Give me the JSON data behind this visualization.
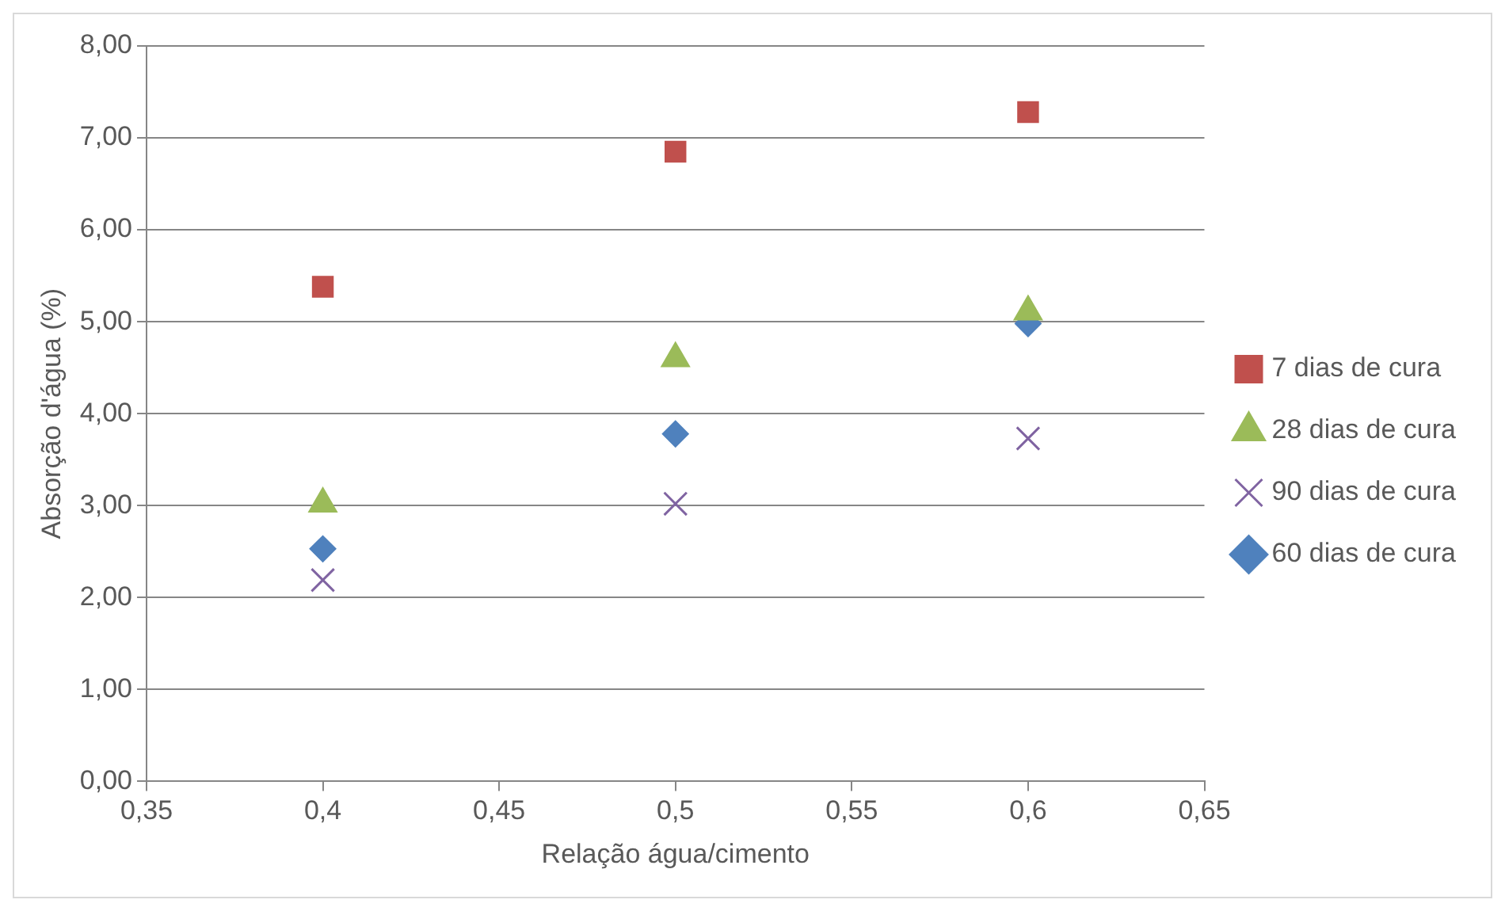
{
  "chart_data": {
    "type": "scatter",
    "xlabel": "Relação água/cimento",
    "ylabel": "Absorção d'água (%)",
    "xlim": [
      0.35,
      0.65
    ],
    "xticks": [
      {
        "value": 0.35,
        "label": "0,35"
      },
      {
        "value": 0.4,
        "label": "0,4"
      },
      {
        "value": 0.45,
        "label": "0,45"
      },
      {
        "value": 0.5,
        "label": "0,5"
      },
      {
        "value": 0.55,
        "label": "0,55"
      },
      {
        "value": 0.6,
        "label": "0,6"
      },
      {
        "value": 0.65,
        "label": "0,65"
      }
    ],
    "ylim": [
      0,
      8
    ],
    "yticks": [
      {
        "value": 0,
        "label": "0,00"
      },
      {
        "value": 1,
        "label": "1,00"
      },
      {
        "value": 2,
        "label": "2,00"
      },
      {
        "value": 3,
        "label": "3,00"
      },
      {
        "value": 4,
        "label": "4,00"
      },
      {
        "value": 5,
        "label": "5,00"
      },
      {
        "value": 6,
        "label": "6,00"
      },
      {
        "value": 7,
        "label": "7,00"
      },
      {
        "value": 8,
        "label": "8,00"
      }
    ],
    "grid": "y",
    "legend": "right",
    "x": [
      0.4,
      0.5,
      0.6
    ],
    "series": [
      {
        "name": "7 dias de cura",
        "color": "#c0504d",
        "marker": "square",
        "values": [
          5.38,
          6.85,
          7.28
        ]
      },
      {
        "name": "28 dias de cura",
        "color": "#9bbb59",
        "marker": "triangle",
        "values": [
          3.02,
          4.6,
          5.11
        ]
      },
      {
        "name": "90 dias de cura",
        "color": "#8064a2",
        "marker": "cross",
        "values": [
          2.19,
          3.02,
          3.73
        ]
      },
      {
        "name": "60 dias de cura",
        "color": "#4f81bd",
        "marker": "diamond",
        "values": [
          2.53,
          3.78,
          4.98
        ]
      }
    ]
  }
}
